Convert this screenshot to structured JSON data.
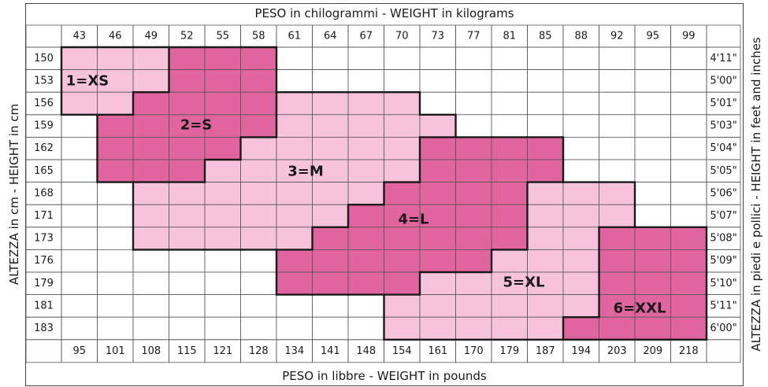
{
  "titles": {
    "top": "PESO in chilogrammi -  WEIGHT in kilograms",
    "bottom": "PESO in libbre -  WEIGHT in pounds",
    "left": "ALTEZZA in cm  -  HEIGHT in cm",
    "right": "ALTEZZA in piedi e pollici - HEIGHT in feet and inches"
  },
  "colors": {
    "light": "#f7c3dc",
    "dark": "#e0649e",
    "grid": "#555555",
    "border": "#1a1a1a"
  },
  "chart_data": {
    "type": "heatmap",
    "weights_kg": [
      "43",
      "46",
      "49",
      "52",
      "55",
      "58",
      "61",
      "64",
      "67",
      "70",
      "73",
      "77",
      "81",
      "85",
      "88",
      "92",
      "95",
      "99"
    ],
    "weights_lb": [
      "95",
      "101",
      "108",
      "115",
      "121",
      "128",
      "134",
      "141",
      "148",
      "154",
      "161",
      "170",
      "179",
      "187",
      "194",
      "203",
      "209",
      "218"
    ],
    "heights_cm": [
      "150",
      "153",
      "156",
      "159",
      "162",
      "165",
      "168",
      "171",
      "173",
      "176",
      "179",
      "181",
      "183"
    ],
    "heights_ft": [
      "4'11\"",
      "5'00\"",
      "5'01\"",
      "5'03\"",
      "5'04\"",
      "5'05\"",
      "5'06\"",
      "5'07\"",
      "5'08\"",
      "5'09\"",
      "5'10\"",
      "5'11\"",
      "6'00\""
    ],
    "sizes": [
      {
        "label": "1=XS",
        "shade": "light"
      },
      {
        "label": "2=S",
        "shade": "dark"
      },
      {
        "label": "3=M",
        "shade": "light"
      },
      {
        "label": "4=L",
        "shade": "dark"
      },
      {
        "label": "5=XL",
        "shade": "light"
      },
      {
        "label": "6=XXL",
        "shade": "dark"
      }
    ],
    "grid": [
      "111222000000000000",
      "111222000000000000",
      "112222333300000000",
      "022222333330000000",
      "022223333344440000",
      "022233333344440000",
      "003333333444455500",
      "003333334444455500",
      "003333344444455666",
      "000000444444555666",
      "000000444455555666",
      "000000000555555666",
      "000000000555556666"
    ]
  }
}
